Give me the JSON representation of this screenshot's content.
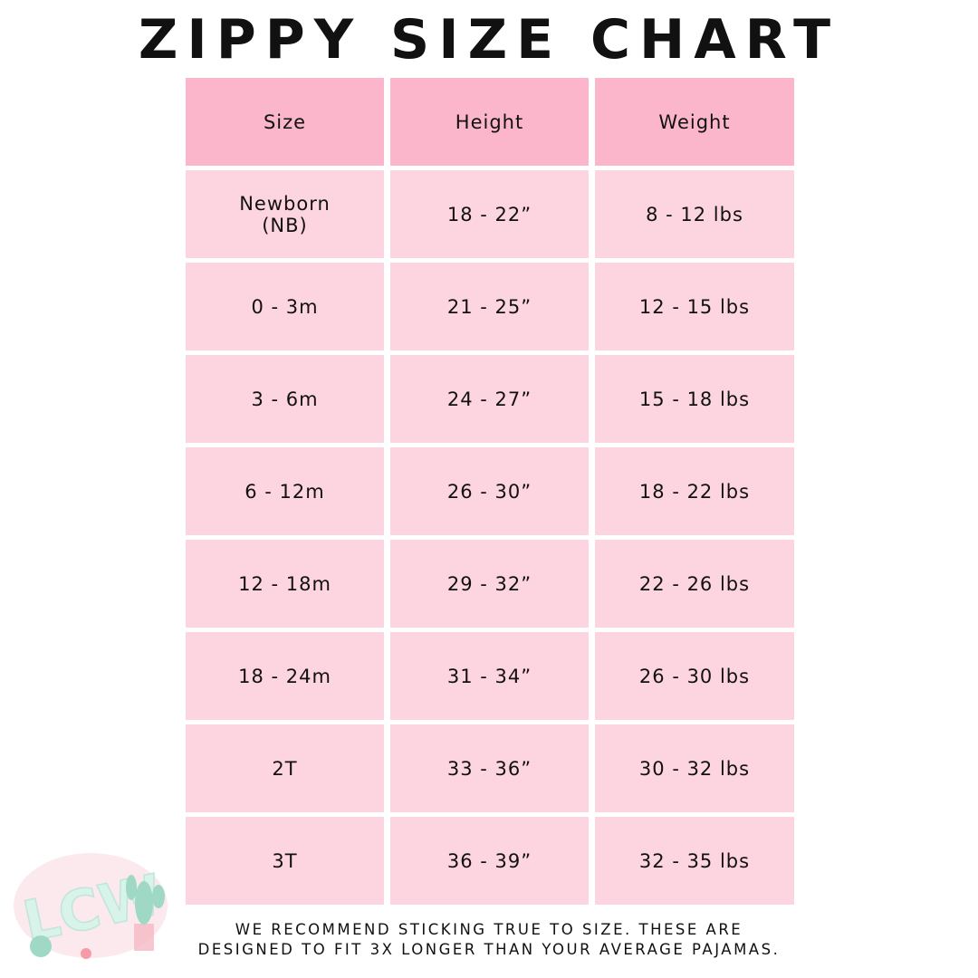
{
  "title": "ZIPPY SIZE CHART",
  "table": {
    "headers": [
      "Size",
      "Height",
      "Weight"
    ],
    "rows": [
      [
        "Newborn\n(NB)",
        "18 - 22”",
        "8 - 12 lbs"
      ],
      [
        "0 - 3m",
        "21 - 25”",
        "12 - 15 lbs"
      ],
      [
        "3 - 6m",
        "24 - 27”",
        "15 - 18 lbs"
      ],
      [
        "6 - 12m",
        "26 - 30”",
        "18 - 22 lbs"
      ],
      [
        "12 - 18m",
        "29 - 32”",
        "22 - 26 lbs"
      ],
      [
        "18 - 24m",
        "31 - 34”",
        "26 - 30 lbs"
      ],
      [
        "2T",
        "33 - 36”",
        "30 - 32 lbs"
      ],
      [
        "3T",
        "36 - 39”",
        "32 - 35 lbs"
      ]
    ]
  },
  "footer": {
    "line1": "WE RECOMMEND STICKING TRUE TO SIZE. THESE ARE",
    "line2": "DESIGNED TO FIT 3X LONGER THAN YOUR AVERAGE PAJAMAS."
  },
  "logo": {
    "text": "LCW",
    "icon": "cactus-logo"
  },
  "colors": {
    "header": "#fcb6cc",
    "cell": "#fdd5e0"
  }
}
